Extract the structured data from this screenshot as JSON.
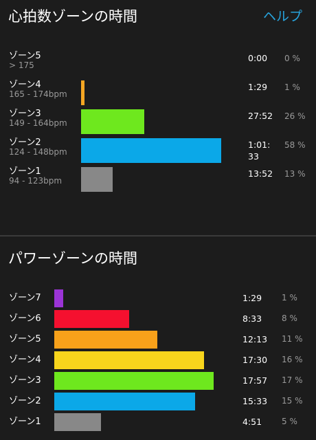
{
  "heart_rate": {
    "title": "心拍数ゾーンの時間",
    "help_label": "ヘルプ",
    "zones": [
      {
        "label": "ゾーン5",
        "range": "> 175",
        "time": "0:00",
        "percent": "0 %",
        "color": "#1c1c1c",
        "share": 0.0
      },
      {
        "label": "ゾーン4",
        "range": "165 - 174bpm",
        "time": "1:29",
        "percent": "1 %",
        "color": "#f5a623",
        "share": 0.01
      },
      {
        "label": "ゾーン3",
        "range": "149 - 164bpm",
        "time": "27:52",
        "percent": "26 %",
        "color": "#6ee81e",
        "share": 0.26
      },
      {
        "label": "ゾーン2",
        "range": "124 - 148bpm",
        "time": "1:01:33",
        "percent": "58 %",
        "color": "#0ba8e8",
        "share": 0.58
      },
      {
        "label": "ゾーン1",
        "range": "94 - 123bpm",
        "time": "13:52",
        "percent": "13 %",
        "color": "#888888",
        "share": 0.13
      }
    ]
  },
  "power": {
    "title": "パワーゾーンの時間",
    "zones": [
      {
        "label": "ゾーン7",
        "time": "1:29",
        "percent": "1 %",
        "color": "#9b34d6",
        "share": 0.01
      },
      {
        "label": "ゾーン6",
        "time": "8:33",
        "percent": "8 %",
        "color": "#f5102f",
        "share": 0.08
      },
      {
        "label": "ゾーン5",
        "time": "12:13",
        "percent": "11 %",
        "color": "#f8a11a",
        "share": 0.11
      },
      {
        "label": "ゾーン4",
        "time": "17:30",
        "percent": "16 %",
        "color": "#f8d51c",
        "share": 0.16
      },
      {
        "label": "ゾーン3",
        "time": "17:57",
        "percent": "17 %",
        "color": "#6ee81e",
        "share": 0.17
      },
      {
        "label": "ゾーン2",
        "time": "15:33",
        "percent": "15 %",
        "color": "#0ba8e8",
        "share": 0.15
      },
      {
        "label": "ゾーン1",
        "time": "4:51",
        "percent": "5 %",
        "color": "#888888",
        "share": 0.05
      }
    ]
  }
}
